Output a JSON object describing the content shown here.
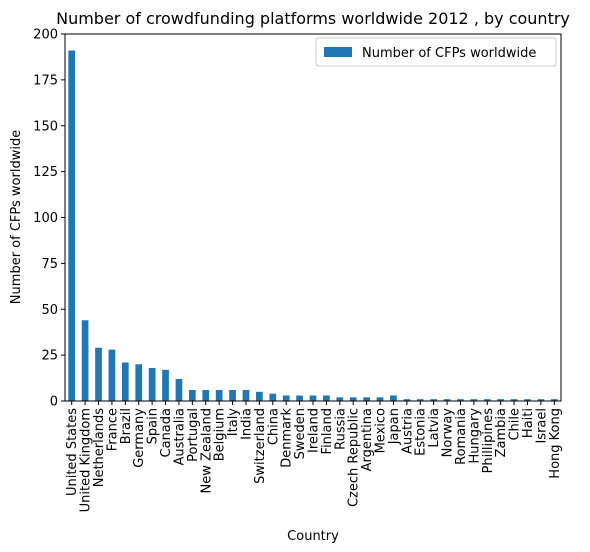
{
  "chart_data": {
    "type": "bar",
    "title": "Number of crowdfunding platforms worldwide 2012 , by country",
    "xlabel": "Country",
    "ylabel": "Number of CFPs worldwide",
    "ylim": [
      0,
      200
    ],
    "yticks": [
      0,
      25,
      50,
      75,
      100,
      125,
      150,
      175,
      200
    ],
    "grid": false,
    "legend_position": "top-right",
    "categories": [
      "United States",
      "United Kingdom",
      "Netherlands",
      "France",
      "Brazil",
      "Germany",
      "Spain",
      "Canada",
      "Australia",
      "Portugal",
      "New Zealand",
      "Belgium",
      "Italy",
      "India",
      "Switzerland",
      "China",
      "Denmark",
      "Sweden",
      "Ireland",
      "Finland",
      "Russia",
      "Czech Republic",
      "Argentina",
      "Mexico",
      "Japan",
      "Austria",
      "Estonia",
      "Latvia",
      "Norway",
      "Romania",
      "Hungary",
      "Phillipines",
      "Zambia",
      "Chile",
      "Haiti",
      "Israel",
      "Hong Kong"
    ],
    "series": [
      {
        "name": "Number of CFPs worldwide",
        "color": "#1f77b4",
        "values": [
          191,
          44,
          29,
          28,
          21,
          20,
          18,
          17,
          12,
          6,
          6,
          6,
          6,
          6,
          5,
          4,
          3,
          3,
          3,
          3,
          2,
          2,
          2,
          2,
          3,
          1,
          1,
          1,
          1,
          1,
          1,
          1,
          1,
          1,
          1,
          1,
          1
        ]
      }
    ]
  }
}
